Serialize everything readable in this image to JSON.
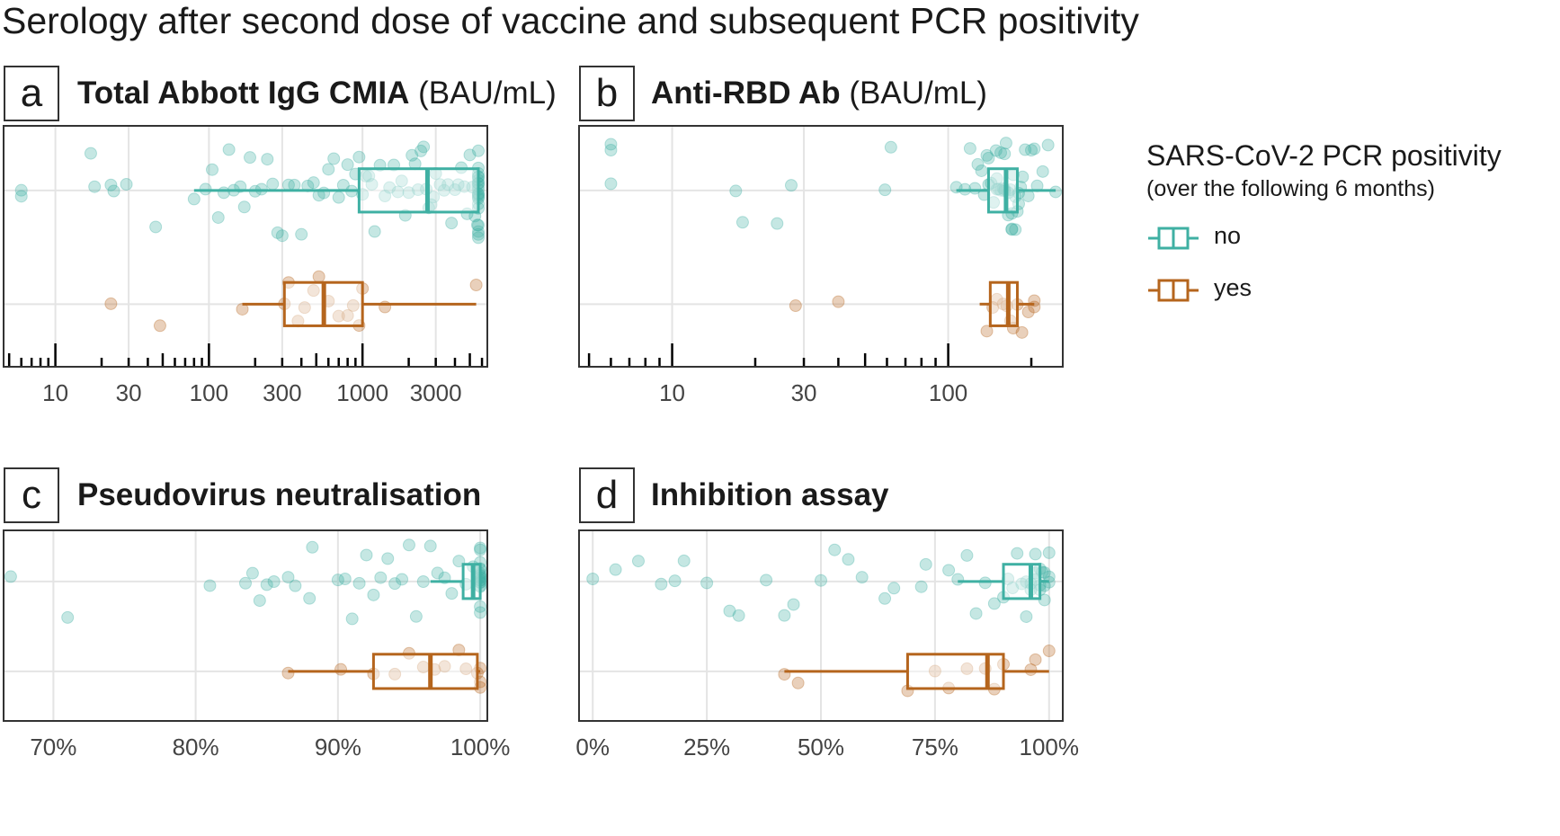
{
  "title": "Serology after second dose of vaccine and subsequent PCR positivity",
  "legend": {
    "title": "SARS-CoV-2  PCR positivity",
    "subtitle": "(over the following 6 months)",
    "items": [
      {
        "label": "no",
        "color": "#3fb0a3"
      },
      {
        "label": "yes",
        "color": "#b5651d"
      }
    ]
  },
  "chart_data": [
    {
      "type": "boxplot",
      "letter": "a",
      "title": "Total Abbott IgG CMIA",
      "unit": "(BAU/mL)",
      "scale": "log",
      "xlim": [
        4.6,
        6500
      ],
      "tick_labels": [
        "10",
        "30",
        "100",
        "300",
        "1000",
        "3000"
      ],
      "tick_values": [
        10,
        30,
        100,
        300,
        1000,
        3000
      ],
      "rug": true,
      "series": [
        {
          "category": "no",
          "box": {
            "whisker_low": 80,
            "q1": 950,
            "median": 2650,
            "q3": 5680,
            "whisker_high": 5680
          },
          "points": [
            6,
            6,
            17,
            18,
            23,
            24,
            29,
            45,
            80,
            95,
            105,
            115,
            125,
            135,
            145,
            160,
            170,
            185,
            200,
            220,
            240,
            260,
            280,
            300,
            330,
            360,
            400,
            440,
            480,
            520,
            560,
            600,
            650,
            700,
            750,
            800,
            850,
            900,
            950,
            1000,
            1050,
            1100,
            1150,
            1200,
            1300,
            1400,
            1500,
            1600,
            1700,
            1800,
            1900,
            2000,
            2100,
            2200,
            2300,
            2400,
            2500,
            2600,
            2700,
            2800,
            2900,
            3000,
            3200,
            3400,
            3600,
            3800,
            4000,
            4200,
            4400,
            4600,
            4800,
            5000,
            5200,
            5400,
            5600,
            5680,
            5680,
            5680,
            5680,
            5680,
            5680,
            5680,
            5680,
            5680,
            5680,
            5680,
            5680,
            5680,
            5680,
            5680,
            5680,
            5680,
            5680,
            5680,
            5680,
            5680
          ]
        },
        {
          "category": "yes",
          "box": {
            "whisker_low": 165,
            "q1": 310,
            "median": 560,
            "q3": 1000,
            "whisker_high": 5500
          },
          "points": [
            23,
            48,
            165,
            310,
            330,
            380,
            420,
            480,
            520,
            600,
            700,
            800,
            870,
            950,
            1000,
            1400,
            5500
          ]
        }
      ]
    },
    {
      "type": "boxplot",
      "letter": "b",
      "title": "Anti-RBD Ab",
      "unit": "(BAU/mL)",
      "scale": "log",
      "xlim": [
        4.6,
        260
      ],
      "tick_labels": [
        "10",
        "30",
        "100"
      ],
      "tick_values": [
        10,
        30,
        100
      ],
      "rug": true,
      "series": [
        {
          "category": "no",
          "box": {
            "whisker_low": 107,
            "q1": 140,
            "median": 162,
            "q3": 178,
            "whisker_high": 245
          },
          "points": [
            6,
            6,
            6,
            17,
            18,
            24,
            27,
            59,
            62,
            107,
            115,
            120,
            125,
            128,
            132,
            135,
            138,
            140,
            143,
            146,
            149,
            152,
            155,
            158,
            160,
            162,
            165,
            168,
            170,
            172,
            175,
            178,
            180,
            183,
            186,
            190,
            195,
            200,
            205,
            210,
            220,
            230,
            245,
            140,
            150,
            160,
            170,
            180,
            150,
            160,
            170,
            165,
            155,
            175
          ]
        },
        {
          "category": "yes",
          "box": {
            "whisker_low": 130,
            "q1": 142,
            "median": 165,
            "q3": 178,
            "whisker_high": 205
          },
          "points": [
            28,
            40,
            138,
            145,
            150,
            158,
            163,
            168,
            172,
            178,
            185,
            195,
            205,
            205
          ]
        }
      ]
    },
    {
      "type": "boxplot",
      "letter": "c",
      "title": "Pseudovirus neutralisation",
      "unit": "",
      "scale": "linear",
      "xlim": [
        0.665,
        1.005
      ],
      "tick_labels": [
        "70%",
        "80%",
        "90%",
        "100%"
      ],
      "tick_values": [
        0.7,
        0.8,
        0.9,
        1.0
      ],
      "rug": false,
      "series": [
        {
          "category": "no",
          "box": {
            "whisker_low": 0.965,
            "q1": 0.988,
            "median": 0.995,
            "q3": 1.0,
            "whisker_high": 1.0
          },
          "points": [
            0.67,
            0.71,
            0.81,
            0.835,
            0.84,
            0.845,
            0.85,
            0.855,
            0.865,
            0.87,
            0.88,
            0.882,
            0.9,
            0.905,
            0.91,
            0.915,
            0.92,
            0.925,
            0.93,
            0.935,
            0.94,
            0.945,
            0.95,
            0.955,
            0.96,
            0.965,
            0.97,
            0.975,
            0.98,
            0.985,
            0.99,
            0.995,
            1.0,
            1.0,
            1.0,
            1.0,
            1.0,
            1.0,
            1.0,
            1.0,
            1.0,
            1.0,
            1.0,
            1.0,
            1.0,
            1.0,
            1.0,
            1.0,
            1.0,
            1.0
          ]
        },
        {
          "category": "yes",
          "box": {
            "whisker_low": 0.865,
            "q1": 0.925,
            "median": 0.965,
            "q3": 0.998,
            "whisker_high": 1.0
          },
          "points": [
            0.865,
            0.902,
            0.925,
            0.94,
            0.95,
            0.96,
            0.968,
            0.975,
            0.985,
            0.99,
            1.0,
            1.0,
            1.0,
            0.998
          ]
        }
      ]
    },
    {
      "type": "boxplot",
      "letter": "d",
      "title": "Inhibition assay",
      "unit": "",
      "scale": "linear",
      "xlim": [
        -0.03,
        1.03
      ],
      "tick_labels": [
        "0%",
        "25%",
        "50%",
        "75%",
        "100%"
      ],
      "tick_values": [
        0,
        0.25,
        0.5,
        0.75,
        1.0
      ],
      "rug": false,
      "series": [
        {
          "category": "no",
          "box": {
            "whisker_low": 0.8,
            "q1": 0.9,
            "median": 0.96,
            "q3": 0.98,
            "whisker_high": 1.0
          },
          "points": [
            0.0,
            0.05,
            0.1,
            0.15,
            0.18,
            0.2,
            0.25,
            0.3,
            0.32,
            0.38,
            0.42,
            0.44,
            0.5,
            0.53,
            0.56,
            0.59,
            0.64,
            0.66,
            0.72,
            0.73,
            0.78,
            0.8,
            0.82,
            0.84,
            0.86,
            0.88,
            0.9,
            0.91,
            0.92,
            0.93,
            0.94,
            0.95,
            0.96,
            0.97,
            0.98,
            0.99,
            1.0,
            1.0,
            0.97,
            0.98,
            0.99,
            0.96,
            0.95,
            0.98,
            0.99,
            1.0,
            0.97,
            0.985
          ]
        },
        {
          "category": "yes",
          "box": {
            "whisker_low": 0.42,
            "q1": 0.69,
            "median": 0.865,
            "q3": 0.9,
            "whisker_high": 1.0
          },
          "points": [
            0.42,
            0.45,
            0.69,
            0.75,
            0.78,
            0.82,
            0.86,
            0.88,
            0.9,
            0.96,
            0.97,
            1.0
          ]
        }
      ]
    }
  ]
}
